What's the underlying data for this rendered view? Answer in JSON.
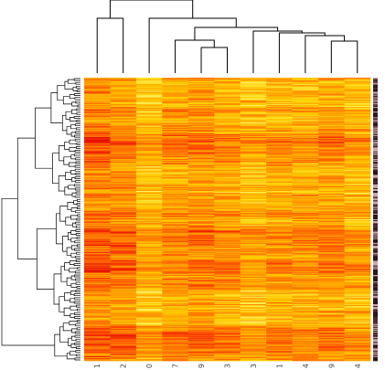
{
  "chart_data": {
    "type": "heatmap",
    "title": "",
    "xlabel": "",
    "ylabel": "",
    "column_labels": [
      "1",
      "2",
      "0",
      "7",
      "9",
      "3",
      "3",
      "1",
      "4",
      "9",
      "4"
    ],
    "row_labels_note": "",
    "n_rows_estimate": 300,
    "color_scale": [
      "#e10000",
      "#ff5500",
      "#ff9a00",
      "#ffd000",
      "#ffff8c"
    ],
    "value_range": [
      0,
      1
    ],
    "column_dendrogram": true,
    "row_dendrogram": true,
    "side_color_bar": true,
    "grid": false,
    "legend": "none"
  }
}
